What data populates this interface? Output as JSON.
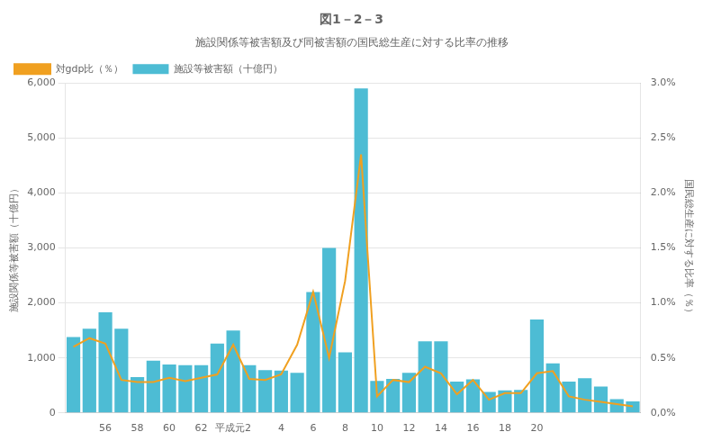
{
  "chart_data": {
    "type": "bar",
    "title": "図1－2－3",
    "subtitle": "施設関係等被害額及び同被害額の国民総生産に対する比率の推移",
    "categories": [
      null,
      null,
      "56",
      null,
      "58",
      null,
      "60",
      null,
      "62",
      null,
      "平成元2",
      null,
      null,
      "4",
      null,
      "6",
      null,
      "8",
      null,
      "10",
      null,
      "12",
      null,
      "14",
      null,
      "16",
      null,
      "18",
      null,
      "20",
      null,
      null,
      null,
      null,
      null,
      null
    ],
    "series": [
      {
        "name": "施設等被害額（十億円）",
        "type": "bar",
        "color": "#4dbcd4",
        "values": [
          1380,
          1530,
          1830,
          1530,
          650,
          950,
          880,
          870,
          870,
          1260,
          1500,
          870,
          780,
          770,
          730,
          2200,
          3000,
          1100,
          5900,
          580,
          620,
          730,
          1300,
          1300,
          570,
          610,
          380,
          410,
          420,
          1700,
          900,
          570,
          630,
          480,
          250,
          210
        ]
      },
      {
        "name": "対gdp比（％）",
        "type": "line",
        "color": "#f0a020",
        "axis": "y2",
        "values": [
          0.6,
          0.68,
          0.63,
          0.3,
          0.28,
          0.28,
          0.32,
          0.29,
          0.32,
          0.35,
          0.62,
          0.31,
          0.3,
          0.35,
          0.62,
          1.1,
          0.5,
          1.2,
          2.35,
          0.15,
          0.3,
          0.28,
          0.42,
          0.36,
          0.17,
          0.3,
          0.12,
          0.18,
          0.18,
          0.36,
          0.38,
          0.15,
          0.12,
          0.1,
          0.08,
          0.06
        ]
      }
    ],
    "ylabel": "施設関係等被害額（十億円）",
    "y2label": "国民総生産に対する比率（％）",
    "ylim": [
      0,
      6000
    ],
    "yticks": [
      0,
      {
        "value": 1000,
        "label": "1,000"
      },
      {
        "value": 2000,
        "label": "2,000"
      },
      {
        "value": 3000,
        "label": "3,000"
      },
      {
        "value": 4000,
        "label": "4,000"
      },
      {
        "value": 5000,
        "label": "5,000"
      },
      {
        "value": 6000,
        "label": "6,000"
      }
    ],
    "y2lim": [
      0.0,
      3.0
    ],
    "y2ticks": [
      {
        "value": 0.0,
        "label": "0,0%"
      },
      {
        "value": 0.5,
        "label": "0.5%"
      },
      {
        "value": 1.0,
        "label": "1.0%"
      },
      {
        "value": 1.5,
        "label": "1.5%"
      },
      {
        "value": 2.0,
        "label": "2.0%"
      },
      {
        "value": 2.5,
        "label": "2.5%"
      },
      {
        "value": 3.0,
        "label": "3.0%"
      }
    ],
    "grid": "y",
    "legend": "upper left"
  }
}
